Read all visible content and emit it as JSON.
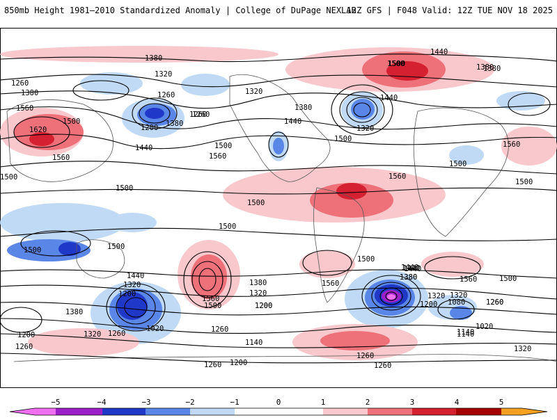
{
  "header": {
    "title": "850mb Height 1981–2010 Standardized Anomaly | College of DuPage NEXLAB",
    "run_info": "12Z GFS | F048 Valid: 12Z TUE NOV 18 2025"
  },
  "colors": {
    "neg5": "#f06ef0",
    "neg4": "#9b20c8",
    "neg3": "#2038c8",
    "neg2": "#5a86e8",
    "neg1": "#c0daf6",
    "zero": "#ffffff",
    "pos1": "#f8c8cc",
    "pos2": "#ee7078",
    "pos3": "#d42030",
    "pos4": "#a80000",
    "pos5": "#f4a020",
    "contour": "#000000",
    "coast": "#555555"
  },
  "colorbar": {
    "tick_labels": [
      "−5",
      "−4",
      "−3",
      "−2",
      "−1",
      "0",
      "1",
      "2",
      "3",
      "4",
      "5"
    ]
  },
  "contour_labels": [
    "1380",
    "1320",
    "1260",
    "1380",
    "1260",
    "1320",
    "1380",
    "1260",
    "1560",
    "1620",
    "1500",
    "1560",
    "1200",
    "1260",
    "1380",
    "1440",
    "1500",
    "1560",
    "1500",
    "1440",
    "1380",
    "1440",
    "1320",
    "1500",
    "1500",
    "1440",
    "1500",
    "1560",
    "1380",
    "1560",
    "1500",
    "1500",
    "1500",
    "1500",
    "1500",
    "1500",
    "1440",
    "1320",
    "1200",
    "1380",
    "1320",
    "1260",
    "1020",
    "1260",
    "1380",
    "1320",
    "1200",
    "1260",
    "1500",
    "1560",
    "1500",
    "1440",
    "1380",
    "1320",
    "1200",
    "1260",
    "1140",
    "1260",
    "1200",
    "1500",
    "1440",
    "1380",
    "1140",
    "1200",
    "1080",
    "1320",
    "1260",
    "1020",
    "1140",
    "1560",
    "1500",
    "1260",
    "1320",
    "1260",
    "1200",
    "1560",
    "1440"
  ]
}
